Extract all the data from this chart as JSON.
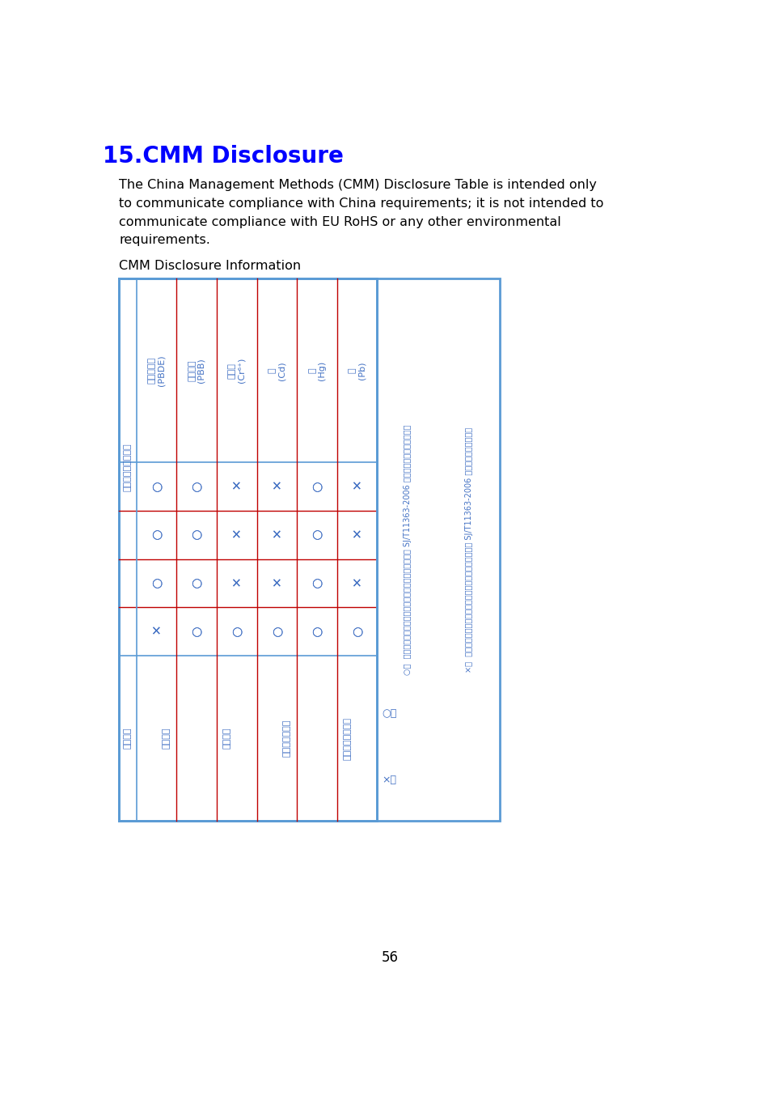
{
  "title": "15.CMM Disclosure",
  "title_color": "#0000FF",
  "title_fontsize": 20,
  "body_text": "The China Management Methods (CMM) Disclosure Table is intended only\nto communicate compliance with China requirements; it is not intended to\ncommunicate compliance with EU RoHS or any other environmental\nrequirements.",
  "subtitle": "CMM Disclosure Information",
  "body_fontsize": 11.5,
  "page_number": "56",
  "table_outer_color": "#5B9BD5",
  "table_inner_color_h": "#5B9BD5",
  "table_inner_color_v": "#C00000",
  "text_color_table": "#4472C4",
  "background_color": "#FFFFFF",
  "row_headers": [
    "多溄二苯酵\n(PBDE)",
    "多溄联苯\n(PBB)",
    "六价铬\n(Cr⁶⁺)",
    "镌\n(Cd)",
    "汞\n(Hg)",
    "邓\n(Pb)"
  ],
  "col_headers": [
    "金属部件",
    "电路模块",
    "电缆及电缆组件",
    "塑料和聚合物部件"
  ],
  "table_data": [
    [
      "O",
      "O",
      "O",
      "X"
    ],
    [
      "O",
      "O",
      "O",
      "O"
    ],
    [
      "X",
      "X",
      "X",
      "O"
    ],
    [
      "X",
      "X",
      "X",
      "O"
    ],
    [
      "O",
      "O",
      "O",
      "O"
    ],
    [
      "X",
      "X",
      "X",
      "O"
    ]
  ],
  "hazardous_label": "有害有害物质或元素",
  "part_name_label": "部件名称",
  "note_o_symbol": "○：",
  "note_o_text": "表示该有害物质在该部件所有均质材料中的含量均在 SJ/T11363-2006 标准规定的限量要求以下。",
  "note_x_symbol": "×：",
  "note_x_text": "表示该有害物质在该部件的某一均质材料中的含量超出 SJ/T11363-2006 标准规定的限量要求。"
}
